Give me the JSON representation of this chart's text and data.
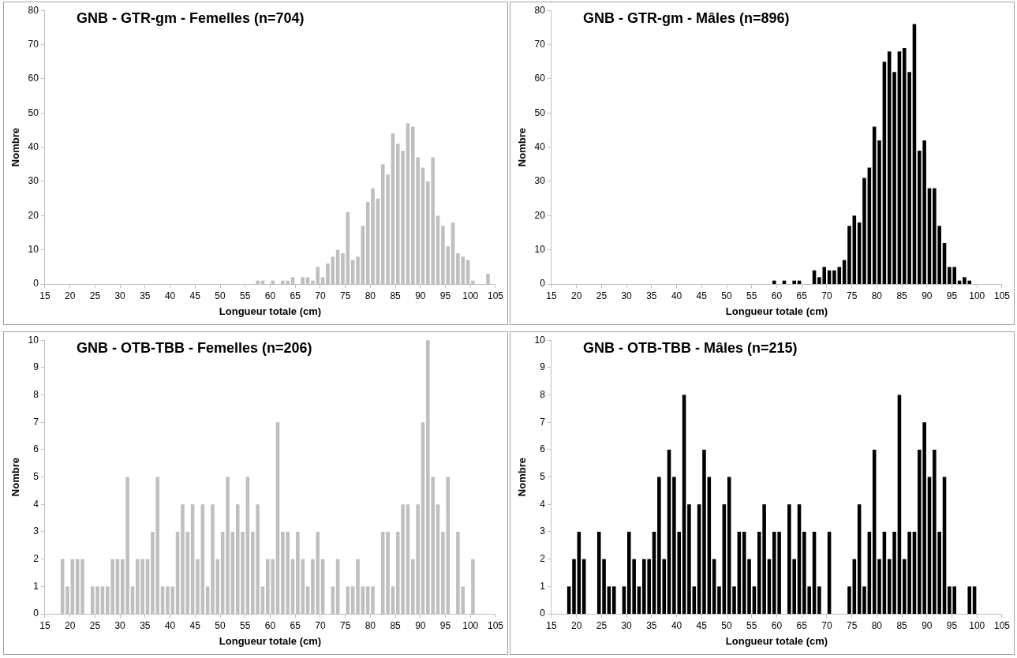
{
  "chart_data": [
    {
      "type": "histogram",
      "title": "GNB - GTR-gm - Femelles (n=704)",
      "xlabel": "Longueur totale (cm)",
      "ylabel": "Nombre",
      "color": "#bfbfbf",
      "grid": false,
      "bins": [
        15,
        16,
        17,
        18,
        19,
        20,
        21,
        22,
        23,
        24,
        25,
        26,
        27,
        28,
        29,
        30,
        31,
        32,
        33,
        34,
        35,
        36,
        37,
        38,
        39,
        40,
        41,
        42,
        43,
        44,
        45,
        46,
        47,
        48,
        49,
        50,
        51,
        52,
        53,
        54,
        55,
        56,
        57,
        58,
        59,
        60,
        61,
        62,
        63,
        64,
        65,
        66,
        67,
        68,
        69,
        70,
        71,
        72,
        73,
        74,
        75,
        76,
        77,
        78,
        79,
        80,
        81,
        82,
        83,
        84,
        85,
        86,
        87,
        88,
        89,
        90,
        91,
        92,
        93,
        94,
        95,
        96,
        97,
        98,
        99,
        100,
        101,
        102,
        103,
        104,
        105
      ],
      "values": [
        0,
        0,
        0,
        0,
        0,
        0,
        0,
        0,
        0,
        0,
        0,
        0,
        0,
        0,
        0,
        0,
        0,
        0,
        0,
        0,
        0,
        0,
        0,
        0,
        0,
        0,
        0,
        0,
        0,
        0,
        0,
        0,
        0,
        0,
        0,
        0,
        0,
        0,
        0,
        0,
        0,
        0,
        1,
        1,
        0,
        1,
        0,
        1,
        1,
        2,
        0,
        2,
        2,
        1,
        5,
        2,
        6,
        8,
        10,
        9,
        21,
        7,
        8,
        17,
        24,
        28,
        25,
        35,
        32,
        44,
        41,
        39,
        47,
        46,
        37,
        34,
        30,
        37,
        20,
        17,
        11,
        18,
        9,
        8,
        7,
        1,
        0,
        0,
        3,
        0
      ],
      "xlim": [
        15,
        105
      ],
      "xticks": [
        15,
        20,
        25,
        30,
        35,
        40,
        45,
        50,
        55,
        60,
        65,
        70,
        75,
        80,
        85,
        90,
        95,
        100,
        105
      ],
      "ylim": [
        0,
        80
      ],
      "yticks": [
        0,
        10,
        20,
        30,
        40,
        50,
        60,
        70,
        80
      ]
    },
    {
      "type": "histogram",
      "title": "GNB - GTR-gm - Mâles (n=896)",
      "xlabel": "Longueur totale (cm)",
      "ylabel": "Nombre",
      "color": "#000000",
      "grid": false,
      "bins": [
        15,
        16,
        17,
        18,
        19,
        20,
        21,
        22,
        23,
        24,
        25,
        26,
        27,
        28,
        29,
        30,
        31,
        32,
        33,
        34,
        35,
        36,
        37,
        38,
        39,
        40,
        41,
        42,
        43,
        44,
        45,
        46,
        47,
        48,
        49,
        50,
        51,
        52,
        53,
        54,
        55,
        56,
        57,
        58,
        59,
        60,
        61,
        62,
        63,
        64,
        65,
        66,
        67,
        68,
        69,
        70,
        71,
        72,
        73,
        74,
        75,
        76,
        77,
        78,
        79,
        80,
        81,
        82,
        83,
        84,
        85,
        86,
        87,
        88,
        89,
        90,
        91,
        92,
        93,
        94,
        95,
        96,
        97,
        98,
        99,
        100,
        101,
        102,
        103,
        104,
        105
      ],
      "values": [
        0,
        0,
        0,
        0,
        0,
        0,
        0,
        0,
        0,
        0,
        0,
        0,
        0,
        0,
        0,
        0,
        0,
        0,
        0,
        0,
        0,
        0,
        0,
        0,
        0,
        0,
        0,
        0,
        0,
        0,
        0,
        0,
        0,
        0,
        0,
        0,
        0,
        0,
        0,
        0,
        0,
        0,
        0,
        0,
        1,
        0,
        1,
        0,
        1,
        1,
        0,
        0,
        4,
        2,
        5,
        4,
        4,
        5,
        7,
        17,
        20,
        18,
        31,
        34,
        46,
        42,
        65,
        68,
        62,
        68,
        69,
        62,
        76,
        39,
        42,
        28,
        28,
        17,
        12,
        5,
        5,
        1,
        2,
        1,
        0,
        0,
        0,
        0,
        0,
        0
      ],
      "xlim": [
        15,
        105
      ],
      "xticks": [
        15,
        20,
        25,
        30,
        35,
        40,
        45,
        50,
        55,
        60,
        65,
        70,
        75,
        80,
        85,
        90,
        95,
        100,
        105
      ],
      "ylim": [
        0,
        80
      ],
      "yticks": [
        0,
        10,
        20,
        30,
        40,
        50,
        60,
        70,
        80
      ]
    },
    {
      "type": "histogram",
      "title": "GNB - OTB-TBB - Femelles (n=206)",
      "xlabel": "Longueur totale (cm)",
      "ylabel": "Nombre",
      "color": "#bfbfbf",
      "grid": false,
      "bins": [
        15,
        16,
        17,
        18,
        19,
        20,
        21,
        22,
        23,
        24,
        25,
        26,
        27,
        28,
        29,
        30,
        31,
        32,
        33,
        34,
        35,
        36,
        37,
        38,
        39,
        40,
        41,
        42,
        43,
        44,
        45,
        46,
        47,
        48,
        49,
        50,
        51,
        52,
        53,
        54,
        55,
        56,
        57,
        58,
        59,
        60,
        61,
        62,
        63,
        64,
        65,
        66,
        67,
        68,
        69,
        70,
        71,
        72,
        73,
        74,
        75,
        76,
        77,
        78,
        79,
        80,
        81,
        82,
        83,
        84,
        85,
        86,
        87,
        88,
        89,
        90,
        91,
        92,
        93,
        94,
        95,
        96,
        97,
        98,
        99,
        100,
        101,
        102,
        103,
        104,
        105
      ],
      "values": [
        0,
        0,
        0,
        2,
        1,
        2,
        2,
        2,
        0,
        1,
        1,
        1,
        1,
        2,
        2,
        2,
        5,
        1,
        2,
        2,
        2,
        3,
        5,
        1,
        1,
        1,
        3,
        4,
        3,
        4,
        2,
        4,
        1,
        4,
        2,
        3,
        5,
        3,
        4,
        3,
        5,
        3,
        4,
        1,
        2,
        2,
        7,
        3,
        3,
        2,
        3,
        2,
        1,
        2,
        3,
        2,
        0,
        1,
        2,
        0,
        1,
        1,
        2,
        1,
        1,
        1,
        0,
        3,
        3,
        1,
        3,
        4,
        4,
        2,
        4,
        7,
        10,
        5,
        4,
        3,
        5,
        0,
        3,
        1,
        0,
        2,
        0,
        0,
        0,
        0
      ],
      "xlim": [
        15,
        105
      ],
      "xticks": [
        15,
        20,
        25,
        30,
        35,
        40,
        45,
        50,
        55,
        60,
        65,
        70,
        75,
        80,
        85,
        90,
        95,
        100,
        105
      ],
      "ylim": [
        0,
        10
      ],
      "yticks": [
        0,
        1,
        2,
        3,
        4,
        5,
        6,
        7,
        8,
        9,
        10
      ]
    },
    {
      "type": "histogram",
      "title": "GNB - OTB-TBB - Mâles (n=215)",
      "xlabel": "Longueur totale (cm)",
      "ylabel": "Nombre",
      "color": "#000000",
      "grid": false,
      "bins": [
        15,
        16,
        17,
        18,
        19,
        20,
        21,
        22,
        23,
        24,
        25,
        26,
        27,
        28,
        29,
        30,
        31,
        32,
        33,
        34,
        35,
        36,
        37,
        38,
        39,
        40,
        41,
        42,
        43,
        44,
        45,
        46,
        47,
        48,
        49,
        50,
        51,
        52,
        53,
        54,
        55,
        56,
        57,
        58,
        59,
        60,
        61,
        62,
        63,
        64,
        65,
        66,
        67,
        68,
        69,
        70,
        71,
        72,
        73,
        74,
        75,
        76,
        77,
        78,
        79,
        80,
        81,
        82,
        83,
        84,
        85,
        86,
        87,
        88,
        89,
        90,
        91,
        92,
        93,
        94,
        95,
        96,
        97,
        98,
        99,
        100,
        101,
        102,
        103,
        104,
        105
      ],
      "values": [
        0,
        0,
        0,
        1,
        2,
        3,
        2,
        0,
        0,
        3,
        2,
        1,
        1,
        0,
        1,
        3,
        2,
        1,
        2,
        2,
        3,
        5,
        2,
        6,
        5,
        3,
        8,
        4,
        1,
        4,
        6,
        5,
        2,
        1,
        4,
        5,
        1,
        3,
        3,
        2,
        1,
        3,
        4,
        2,
        3,
        3,
        0,
        4,
        2,
        4,
        3,
        1,
        3,
        1,
        0,
        3,
        0,
        0,
        0,
        1,
        2,
        4,
        1,
        3,
        6,
        2,
        3,
        2,
        3,
        8,
        2,
        3,
        3,
        6,
        7,
        5,
        6,
        3,
        5,
        1,
        1,
        0,
        0,
        1,
        1,
        0,
        0,
        0,
        0,
        0
      ],
      "xlim": [
        15,
        105
      ],
      "xticks": [
        15,
        20,
        25,
        30,
        35,
        40,
        45,
        50,
        55,
        60,
        65,
        70,
        75,
        80,
        85,
        90,
        95,
        100,
        105
      ],
      "ylim": [
        0,
        10
      ],
      "yticks": [
        0,
        1,
        2,
        3,
        4,
        5,
        6,
        7,
        8,
        9,
        10
      ]
    }
  ]
}
